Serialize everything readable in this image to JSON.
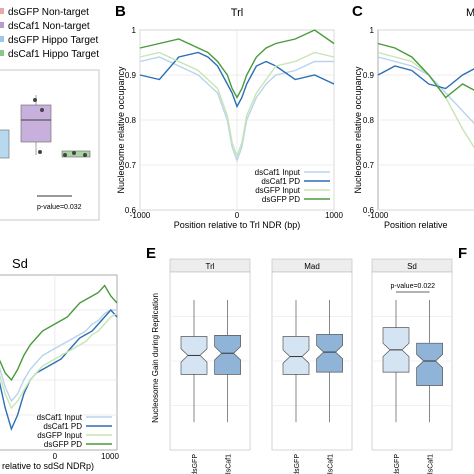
{
  "panels": {
    "A": {
      "legend": [
        "dsGFP Non-target",
        "dsCaf1 Non-target",
        "dsGFP Hippo Target",
        "dsCaf1 Hippo Target"
      ],
      "legend_colors": [
        "#e8a8a8",
        "#b89bcc",
        "#9fc8e8",
        "#8fc48a"
      ],
      "pvalue": "p-value=0.032"
    },
    "B": {
      "letter": "B",
      "title": "Trl"
    },
    "C": {
      "letter": "C",
      "title": "M"
    },
    "D": {
      "title": "Sd"
    },
    "E": {
      "letter": "E"
    },
    "F": {
      "letter": "F"
    }
  },
  "labels": {
    "ylabel_occupancy": "Nucleosome relative occupancy",
    "xlabel_B": "Position relative to Trl NDR (bp)",
    "xlabel_C": "Position relative",
    "xlabel_D": "relative to sdSd NDRp)",
    "ylabel_gain": "Nucleosome Gain during Replication"
  },
  "chart_data": [
    {
      "id": "B",
      "type": "line",
      "title": "Trl",
      "xlabel": "Position relative to Trl NDR (bp)",
      "ylabel": "Nucleosome relative occupancy",
      "xlim": [
        -1000,
        1000
      ],
      "ylim": [
        0.6,
        1.0
      ],
      "yticks": [
        0.6,
        0.7,
        0.8,
        0.9,
        1.0
      ],
      "ytick_labels": [
        "0.6",
        "0.7",
        "0.8",
        "0.9",
        "1"
      ],
      "xticks": [
        -1000,
        0,
        1000
      ],
      "xtick_labels": [
        "-1000",
        "0",
        "1000"
      ],
      "x": [
        -1000,
        -800,
        -600,
        -400,
        -300,
        -200,
        -100,
        -50,
        0,
        50,
        100,
        200,
        300,
        400,
        600,
        800,
        1000
      ],
      "series": [
        {
          "name": "dsCaf1 Input",
          "color": "#b8d4ec",
          "values": [
            0.93,
            0.94,
            0.92,
            0.9,
            0.88,
            0.86,
            0.8,
            0.74,
            0.71,
            0.74,
            0.8,
            0.85,
            0.88,
            0.9,
            0.91,
            0.93,
            0.93
          ]
        },
        {
          "name": "dsCaf1 PD",
          "color": "#2c6fb3",
          "values": [
            0.9,
            0.89,
            0.94,
            0.95,
            0.94,
            0.92,
            0.88,
            0.86,
            0.83,
            0.85,
            0.88,
            0.92,
            0.93,
            0.92,
            0.89,
            0.9,
            0.88
          ]
        },
        {
          "name": "dsGFP Input",
          "color": "#c8e4b4",
          "values": [
            0.94,
            0.95,
            0.93,
            0.91,
            0.89,
            0.87,
            0.81,
            0.75,
            0.72,
            0.75,
            0.81,
            0.86,
            0.89,
            0.92,
            0.93,
            0.95,
            0.94
          ]
        },
        {
          "name": "dsGFP PD",
          "color": "#4a9a3c",
          "values": [
            0.96,
            0.97,
            0.98,
            0.96,
            0.95,
            0.93,
            0.9,
            0.87,
            0.85,
            0.87,
            0.9,
            0.94,
            0.96,
            0.97,
            0.98,
            1.0,
            0.97
          ]
        }
      ]
    },
    {
      "id": "C",
      "type": "line",
      "title": "M",
      "xlabel": "Position relative",
      "ylabel": "Nucleosome relative occupancy",
      "ylim": [
        0.6,
        1.0
      ],
      "yticks": [
        0.6,
        0.7,
        0.8,
        0.9,
        1.0
      ],
      "ytick_labels": [
        "0.6",
        "0.7",
        "0.8",
        "0.9",
        "1"
      ],
      "xtick_labels": [
        "-1000"
      ],
      "x": [
        -1000,
        -900,
        -800,
        -700,
        -600,
        -500,
        -400
      ],
      "series": [
        {
          "name": "dsCaf1 Input",
          "color": "#b8d4ec",
          "values": [
            0.94,
            0.93,
            0.92,
            0.9,
            0.86,
            0.82,
            0.78
          ]
        },
        {
          "name": "dsCaf1 PD",
          "color": "#2c6fb3",
          "values": [
            0.9,
            0.92,
            0.91,
            0.88,
            0.87,
            0.9,
            0.92
          ]
        },
        {
          "name": "dsGFP Input",
          "color": "#c8e4b4",
          "values": [
            0.95,
            0.94,
            0.93,
            0.9,
            0.85,
            0.78,
            0.72
          ]
        },
        {
          "name": "dsGFP PD",
          "color": "#4a9a3c",
          "values": [
            0.97,
            0.96,
            0.94,
            0.9,
            0.85,
            0.88,
            0.86
          ]
        }
      ]
    },
    {
      "id": "D",
      "type": "line",
      "title": "Sd",
      "xlabel": "relative to sdSd NDRp)",
      "xlim": [
        -1000,
        1000
      ],
      "xtick_labels": [
        "0",
        "1000"
      ],
      "x": [
        -1000,
        -900,
        -800,
        -700,
        -600,
        -500,
        -400,
        -300,
        -200,
        -100,
        0,
        100,
        200,
        300,
        400,
        500,
        600,
        700,
        800,
        900,
        1000
      ],
      "series": [
        {
          "name": "dsCaf1 Input",
          "color": "#b8d4ec",
          "values": [
            0.88,
            0.84,
            0.78,
            0.74,
            0.76,
            0.8,
            0.83,
            0.85,
            0.87,
            0.88,
            0.89,
            0.9,
            0.91,
            0.92,
            0.93,
            0.94,
            0.96,
            0.97,
            0.99,
            1.0,
            1.0
          ]
        },
        {
          "name": "dsCaf1 PD",
          "color": "#2c6fb3",
          "values": [
            0.86,
            0.8,
            0.72,
            0.66,
            0.7,
            0.76,
            0.8,
            0.82,
            0.83,
            0.84,
            0.85,
            0.86,
            0.88,
            0.9,
            0.92,
            0.93,
            0.94,
            0.96,
            0.98,
            1.0,
            0.98
          ]
        },
        {
          "name": "dsGFP Input",
          "color": "#c8e4b4",
          "values": [
            0.86,
            0.82,
            0.76,
            0.72,
            0.74,
            0.77,
            0.8,
            0.82,
            0.84,
            0.85,
            0.86,
            0.87,
            0.88,
            0.89,
            0.9,
            0.91,
            0.93,
            0.94,
            0.96,
            0.98,
            0.99
          ]
        },
        {
          "name": "dsGFP PD",
          "color": "#4a9a3c",
          "values": [
            0.9,
            0.86,
            0.82,
            0.8,
            0.83,
            0.87,
            0.9,
            0.92,
            0.94,
            0.95,
            0.96,
            0.97,
            0.98,
            1.0,
            1.02,
            1.03,
            1.04,
            1.05,
            1.07,
            1.04,
            1.02
          ]
        }
      ]
    },
    {
      "id": "E",
      "type": "box",
      "ylabel": "Nucleosome Gain during Replication",
      "subplots": [
        {
          "title": "Trl",
          "categories": [
            "dsGFP",
            "dsCaf1"
          ],
          "boxes": [
            {
              "q1": -0.12,
              "median": 0.05,
              "q3": 0.22,
              "whislo": -0.55,
              "whishi": 0.55,
              "color": "#d4e4f2"
            },
            {
              "q1": -0.12,
              "median": 0.07,
              "q3": 0.23,
              "whislo": -0.55,
              "whishi": 0.55,
              "color": "#8fb4d8"
            }
          ]
        },
        {
          "title": "Mad",
          "categories": [
            "dsGFP",
            "dsCaf1"
          ],
          "boxes": [
            {
              "q1": -0.12,
              "median": 0.04,
              "q3": 0.22,
              "whislo": -0.55,
              "whishi": 0.55,
              "color": "#d4e4f2"
            },
            {
              "q1": -0.1,
              "median": 0.08,
              "q3": 0.24,
              "whislo": -0.55,
              "whishi": 0.55,
              "color": "#8fb4d8"
            }
          ]
        },
        {
          "title": "Sd",
          "categories": [
            "dsGFP",
            "dsCaf1"
          ],
          "annotation": "p-value=0.022",
          "boxes": [
            {
              "q1": -0.1,
              "median": 0.1,
              "q3": 0.3,
              "whislo": -0.55,
              "whishi": 0.55,
              "color": "#d4e4f2"
            },
            {
              "q1": -0.22,
              "median": 0.0,
              "q3": 0.16,
              "whislo": -0.55,
              "whishi": 0.55,
              "color": "#8fb4d8"
            }
          ]
        }
      ]
    }
  ]
}
